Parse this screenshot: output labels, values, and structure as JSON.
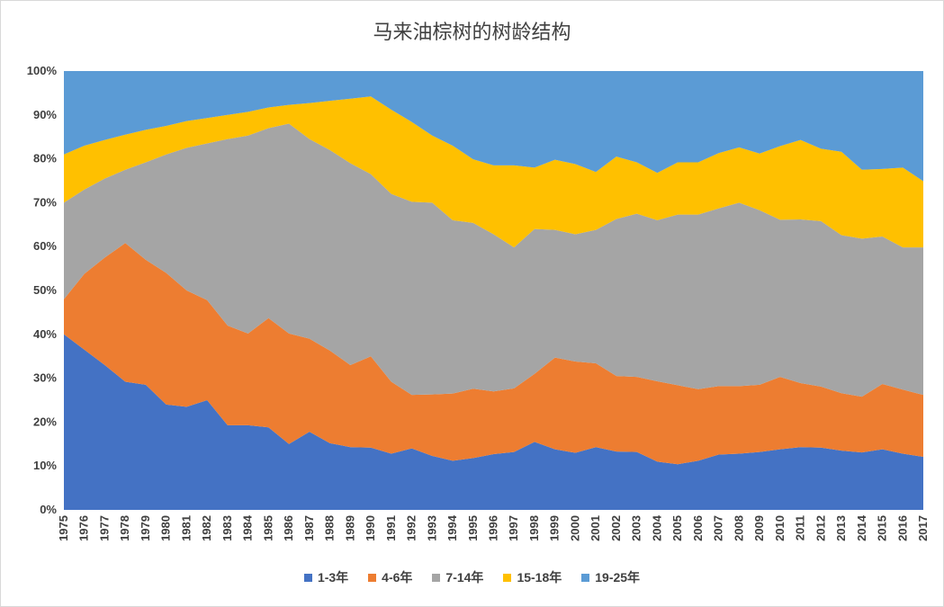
{
  "chart_data": {
    "type": "area",
    "stacked": "percent",
    "title": "马来油棕树的树龄结构",
    "y_ticks": [
      "0%",
      "10%",
      "20%",
      "30%",
      "40%",
      "50%",
      "60%",
      "70%",
      "80%",
      "90%",
      "100%"
    ],
    "ylim": [
      0,
      100
    ],
    "grid": false,
    "legend_position": "bottom",
    "x": [
      "1975",
      "1976",
      "1977",
      "1978",
      "1979",
      "1980",
      "1981",
      "1982",
      "1983",
      "1984",
      "1985",
      "1986",
      "1987",
      "1988",
      "1989",
      "1990",
      "1991",
      "1992",
      "1993",
      "1994",
      "1995",
      "1996",
      "1997",
      "1998",
      "1999",
      "2000",
      "2001",
      "2002",
      "2003",
      "2004",
      "2005",
      "2006",
      "2007",
      "2008",
      "2009",
      "2010",
      "2011",
      "2012",
      "2013",
      "2014",
      "2015",
      "2016",
      "2017"
    ],
    "cumulative_boundaries_percent": [
      [
        40,
        36.5,
        33,
        29.2,
        28.5,
        24,
        23.5,
        25,
        19.3,
        19.3,
        18.8,
        15,
        17.8,
        15.2,
        14.3,
        14.2,
        12.8,
        14,
        12.3,
        11.2,
        11.8,
        12.7,
        13.2,
        15.5,
        13.8,
        13,
        14.3,
        13.3,
        13.2,
        11,
        10.4,
        11.2,
        12.6,
        12.8,
        13.2,
        13.8,
        14.3,
        14.2,
        13.5,
        13.1,
        13.8,
        12.8,
        12.1
      ],
      [
        48,
        53.8,
        57.5,
        60.8,
        57,
        54,
        50,
        47.8,
        42,
        40.2,
        43.7,
        40.2,
        39,
        36.3,
        33,
        35,
        29.2,
        26.2,
        26.3,
        26.5,
        27.6,
        27,
        27.7,
        31,
        34.7,
        33.8,
        33.4,
        30.5,
        30.3,
        29.3,
        28.4,
        27.5,
        28.2,
        28.2,
        28.5,
        30.3,
        28.9,
        28.1,
        26.6,
        25.8,
        28.7,
        27.4,
        26.2
      ],
      [
        70,
        73,
        75.5,
        77.5,
        79.2,
        81,
        82.5,
        83.5,
        84.5,
        85.3,
        87,
        88,
        84.5,
        82,
        79,
        76.5,
        72,
        70.2,
        70,
        66,
        65.4,
        62.8,
        59.8,
        64,
        63.8,
        62.8,
        63.8,
        66.3,
        67.5,
        66,
        67.3,
        67.3,
        68.7,
        70,
        68.3,
        66.1,
        66.2,
        65.8,
        62.6,
        61.8,
        62.3,
        59.8,
        59.8
      ],
      [
        81,
        83,
        84.3,
        85.5,
        86.6,
        87.5,
        88.6,
        89.3,
        90,
        90.7,
        91.7,
        92.3,
        92.7,
        93.2,
        93.7,
        94.2,
        91.2,
        88.4,
        85.3,
        83,
        79.9,
        78.5,
        78.5,
        78,
        79.8,
        78.8,
        77,
        80.5,
        79.2,
        76.8,
        79.2,
        79.2,
        81.3,
        82.6,
        81.2,
        82.9,
        84.3,
        82.3,
        81.6,
        77.5,
        77.7,
        78,
        74.9
      ]
    ],
    "series": [
      {
        "name": "1-3年",
        "color": "#4472C4"
      },
      {
        "name": "4-6年",
        "color": "#ED7D31"
      },
      {
        "name": "7-14年",
        "color": "#A5A5A5"
      },
      {
        "name": "15-18年",
        "color": "#FFC000"
      },
      {
        "name": "19-25年",
        "color": "#5B9BD5"
      }
    ]
  }
}
